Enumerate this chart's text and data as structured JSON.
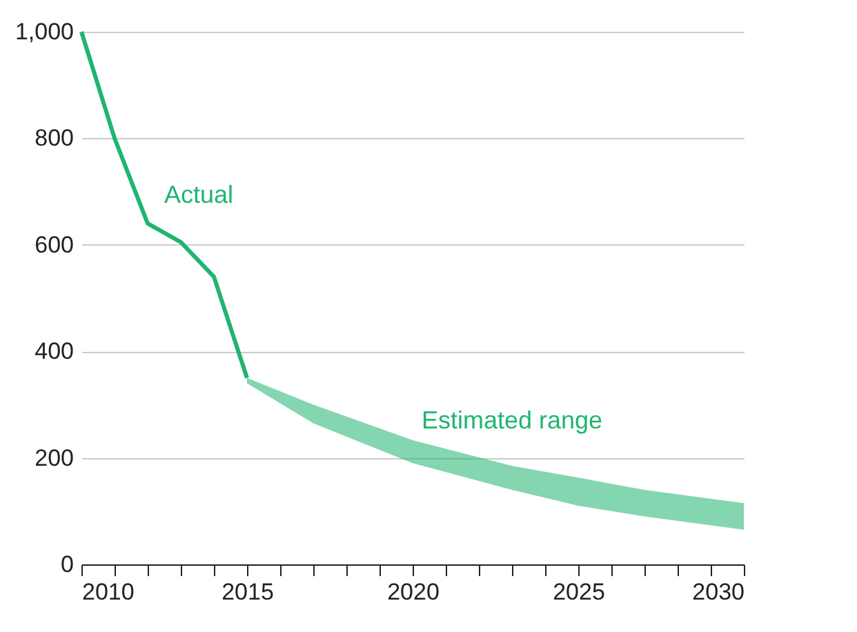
{
  "chart_data": {
    "type": "line",
    "x": [
      2010,
      2011,
      2012,
      2013,
      2014,
      2015
    ],
    "series": [
      {
        "name": "Actual",
        "color": "#1fb56f",
        "values": [
          1000,
          800,
          640,
          605,
          540,
          350
        ]
      },
      {
        "name": "Estimated range",
        "type": "area",
        "color": "#1fb56f",
        "x": [
          2015,
          2017,
          2020,
          2023,
          2025,
          2027,
          2030
        ],
        "values": [
          null,
          null,
          null,
          null,
          null,
          null,
          null
        ],
        "lower": [
          340,
          265,
          190,
          140,
          110,
          90,
          65
        ],
        "upper": [
          350,
          300,
          233,
          185,
          163,
          140,
          115
        ]
      }
    ],
    "xlim": [
      2010,
      2030
    ],
    "xticks": [
      2010,
      {
        "value": 2011,
        "label": null
      },
      {
        "value": 2012,
        "label": null
      },
      {
        "value": 2013,
        "label": null
      },
      {
        "value": 2014,
        "label": null
      },
      2015,
      {
        "value": 2016,
        "label": null
      },
      {
        "value": 2017,
        "label": null
      },
      {
        "value": 2018,
        "label": null
      },
      {
        "value": 2019,
        "label": null
      },
      2020,
      {
        "value": 2021,
        "label": null
      },
      {
        "value": 2022,
        "label": null
      },
      {
        "value": 2023,
        "label": null
      },
      {
        "value": 2024,
        "label": null
      },
      2025,
      {
        "value": 2026,
        "label": null
      },
      {
        "value": 2027,
        "label": null
      },
      {
        "value": 2028,
        "label": null
      },
      {
        "value": 2029,
        "label": null
      },
      2030
    ],
    "ylim": [
      0,
      1000
    ],
    "yticks": [
      0,
      200,
      400,
      600,
      800,
      {
        "value": 1000,
        "label": "1,000"
      }
    ],
    "grid": "y",
    "marker": "none",
    "line_style": "solid"
  }
}
